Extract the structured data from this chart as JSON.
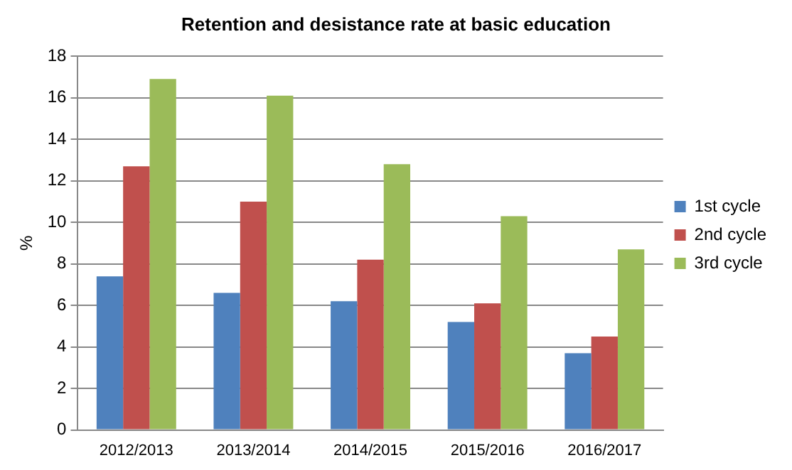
{
  "chart_data": {
    "type": "bar",
    "title": "Retention and desistance rate at basic education",
    "ylabel": "%",
    "categories": [
      "2012/2013",
      "2013/2014",
      "2014/2015",
      "2015/2016",
      "2016/2017"
    ],
    "series": [
      {
        "name": "1st cycle",
        "color": "#4f81bd",
        "values": [
          7.4,
          6.6,
          6.2,
          5.2,
          3.7
        ]
      },
      {
        "name": "2nd cycle",
        "color": "#c0504d",
        "values": [
          12.7,
          11.0,
          8.2,
          6.1,
          4.5
        ]
      },
      {
        "name": "3rd cycle",
        "color": "#9bbb59",
        "values": [
          16.9,
          16.1,
          12.8,
          10.3,
          8.7
        ]
      }
    ],
    "ylim": [
      0,
      18
    ],
    "yticks": [
      0,
      2,
      4,
      6,
      8,
      10,
      12,
      14,
      16,
      18
    ],
    "grid": "y",
    "legend": "right"
  }
}
